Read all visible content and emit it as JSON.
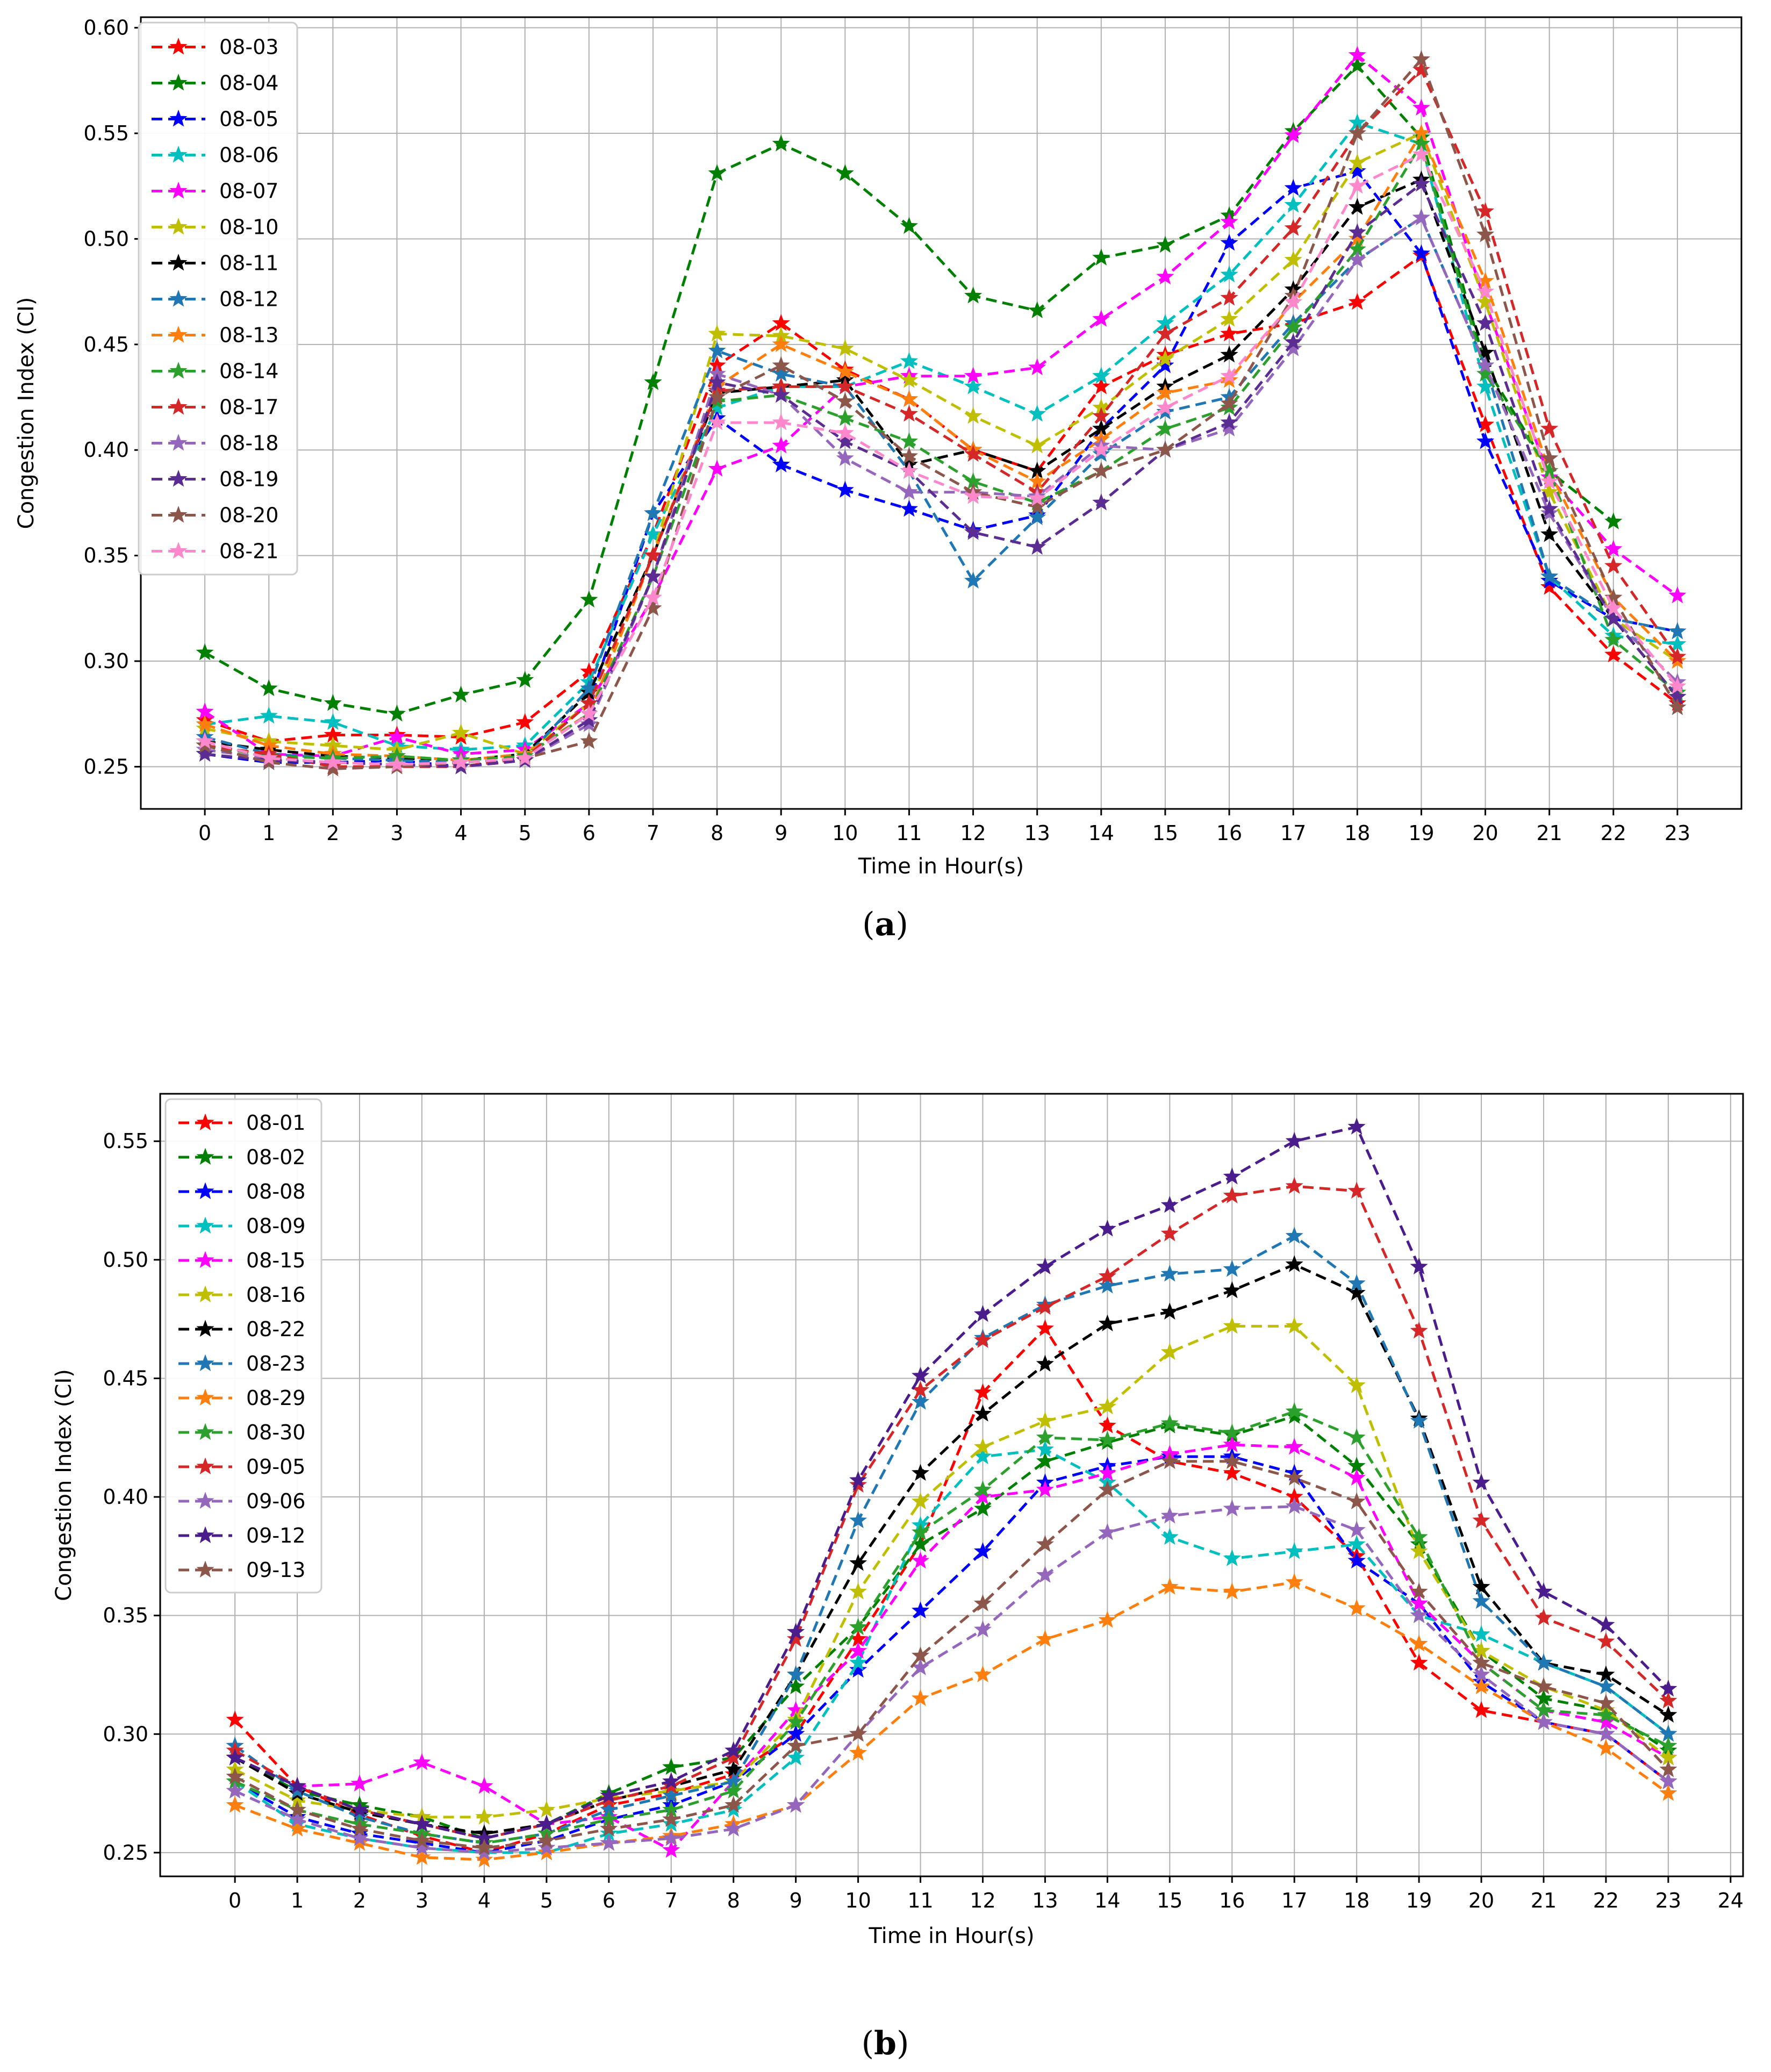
{
  "chart_data": [
    {
      "id": "a",
      "type": "line",
      "caption_letter": "a",
      "xlabel": "Time in Hour(s)",
      "ylabel": "Congestion Index (CI)",
      "xlim": [
        -1,
        24
      ],
      "ylim": [
        0.23,
        0.605
      ],
      "xticks": [
        0,
        1,
        2,
        3,
        4,
        5,
        6,
        7,
        8,
        9,
        10,
        11,
        12,
        13,
        14,
        15,
        16,
        17,
        18,
        19,
        20,
        21,
        22,
        23
      ],
      "yticks": [
        "0.25",
        "0.30",
        "0.35",
        "0.40",
        "0.45",
        "0.50",
        "0.55",
        "0.60"
      ],
      "grid": true,
      "legend_position": "top-left",
      "series": [
        {
          "name": "08-03",
          "color": "#ff0000",
          "values": [
            0.272,
            0.262,
            0.265,
            0.265,
            0.264,
            0.271,
            0.295,
            0.36,
            0.44,
            0.46,
            0.438,
            0.424,
            0.4,
            0.39,
            0.43,
            0.445,
            0.455,
            0.46,
            0.47,
            0.492,
            0.412,
            0.335,
            0.303,
            0.28
          ]
        },
        {
          "name": "08-04",
          "color": "#008000",
          "values": [
            0.304,
            0.287,
            0.28,
            0.275,
            0.284,
            0.291,
            0.329,
            0.432,
            0.531,
            0.545,
            0.531,
            0.506,
            0.473,
            0.466,
            0.491,
            0.497,
            0.511,
            0.551,
            0.582,
            0.548,
            0.44,
            0.39,
            0.366,
            null
          ]
        },
        {
          "name": "08-05",
          "color": "#0000ff",
          "values": [
            0.256,
            0.252,
            0.252,
            0.253,
            0.25,
            0.254,
            0.28,
            0.37,
            0.415,
            0.393,
            0.381,
            0.372,
            0.362,
            0.369,
            0.41,
            0.44,
            0.498,
            0.524,
            0.532,
            0.493,
            0.404,
            0.338,
            0.32,
            0.314
          ]
        },
        {
          "name": "08-06",
          "color": "#00bfbf",
          "values": [
            0.27,
            0.274,
            0.271,
            0.26,
            0.258,
            0.26,
            0.29,
            0.36,
            0.42,
            0.43,
            0.43,
            0.442,
            0.43,
            0.417,
            0.435,
            0.46,
            0.483,
            0.516,
            0.555,
            0.545,
            0.43,
            0.34,
            0.312,
            0.308
          ]
        },
        {
          "name": "08-07",
          "color": "#ff00ff",
          "values": [
            0.276,
            0.256,
            0.255,
            0.264,
            0.256,
            0.258,
            0.28,
            0.33,
            0.391,
            0.402,
            0.43,
            0.435,
            0.435,
            0.439,
            0.462,
            0.482,
            0.508,
            0.549,
            0.587,
            0.562,
            0.47,
            0.387,
            0.353,
            0.331
          ]
        },
        {
          "name": "08-10",
          "color": "#bfbf00",
          "values": [
            0.268,
            0.262,
            0.26,
            0.258,
            0.266,
            0.256,
            0.28,
            0.35,
            0.455,
            0.454,
            0.448,
            0.433,
            0.416,
            0.402,
            0.42,
            0.443,
            0.462,
            0.49,
            0.536,
            0.55,
            0.47,
            0.38,
            0.32,
            0.3
          ]
        },
        {
          "name": "08-11",
          "color": "#000000",
          "values": [
            0.262,
            0.258,
            0.255,
            0.254,
            0.253,
            0.256,
            0.285,
            0.35,
            0.427,
            0.43,
            0.433,
            0.393,
            0.4,
            0.39,
            0.41,
            0.43,
            0.445,
            0.476,
            0.515,
            0.528,
            0.446,
            0.36,
            0.32,
            0.283
          ]
        },
        {
          "name": "08-12",
          "color": "#1f77b4",
          "values": [
            0.264,
            0.256,
            0.254,
            0.253,
            0.252,
            0.254,
            0.287,
            0.37,
            0.447,
            0.436,
            0.43,
            0.39,
            0.338,
            0.368,
            0.398,
            0.418,
            0.425,
            0.46,
            0.49,
            0.51,
            0.44,
            0.34,
            0.32,
            0.314
          ]
        },
        {
          "name": "08-13",
          "color": "#ff7f0e",
          "values": [
            0.27,
            0.26,
            0.256,
            0.255,
            0.253,
            0.256,
            0.275,
            0.35,
            0.43,
            0.45,
            0.437,
            0.424,
            0.4,
            0.385,
            0.405,
            0.427,
            0.433,
            0.47,
            0.5,
            0.55,
            0.48,
            0.39,
            0.33,
            0.3
          ]
        },
        {
          "name": "08-14",
          "color": "#2ca02c",
          "values": [
            0.26,
            0.255,
            0.254,
            0.255,
            0.253,
            0.255,
            0.275,
            0.34,
            0.423,
            0.426,
            0.415,
            0.404,
            0.385,
            0.375,
            0.39,
            0.41,
            0.42,
            0.458,
            0.495,
            0.545,
            0.436,
            0.39,
            0.31,
            0.285
          ]
        },
        {
          "name": "08-17",
          "color": "#d62728",
          "values": [
            0.26,
            0.256,
            0.25,
            0.25,
            0.25,
            0.254,
            0.28,
            0.35,
            0.428,
            0.43,
            0.43,
            0.417,
            0.398,
            0.38,
            0.416,
            0.455,
            0.472,
            0.505,
            0.55,
            0.58,
            0.513,
            0.41,
            0.345,
            0.302
          ]
        },
        {
          "name": "08-18",
          "color": "#9467bd",
          "values": [
            0.258,
            0.254,
            0.252,
            0.251,
            0.25,
            0.253,
            0.27,
            0.34,
            0.436,
            0.426,
            0.396,
            0.38,
            0.38,
            0.378,
            0.402,
            0.4,
            0.41,
            0.448,
            0.49,
            0.51,
            0.44,
            0.37,
            0.32,
            0.29
          ]
        },
        {
          "name": "08-19",
          "color": "#5b2c91",
          "values": [
            0.256,
            0.253,
            0.252,
            0.251,
            0.25,
            0.253,
            0.272,
            0.34,
            0.432,
            0.426,
            0.404,
            0.39,
            0.361,
            0.354,
            0.375,
            0.4,
            0.413,
            0.451,
            0.503,
            0.526,
            0.46,
            0.372,
            0.32,
            0.283
          ]
        },
        {
          "name": "08-20",
          "color": "#8c564b",
          "values": [
            0.26,
            0.252,
            0.249,
            0.25,
            0.252,
            0.254,
            0.262,
            0.325,
            0.425,
            0.44,
            0.423,
            0.397,
            0.38,
            0.373,
            0.39,
            0.4,
            0.422,
            0.473,
            0.55,
            0.585,
            0.502,
            0.396,
            0.33,
            0.278
          ]
        },
        {
          "name": "08-21",
          "color": "#ff88cc",
          "values": [
            0.262,
            0.254,
            0.252,
            0.251,
            0.252,
            0.254,
            0.275,
            0.33,
            0.413,
            0.413,
            0.408,
            0.39,
            0.378,
            0.377,
            0.4,
            0.42,
            0.435,
            0.47,
            0.525,
            0.54,
            0.475,
            0.385,
            0.325,
            0.288
          ]
        }
      ]
    },
    {
      "id": "b",
      "type": "line",
      "caption_letter": "b",
      "xlabel": "Time in Hour(s)",
      "ylabel": "Congestion Index (CI)",
      "xlim": [
        -1.2,
        24.2
      ],
      "ylim": [
        0.24,
        0.57
      ],
      "xticks": [
        0,
        1,
        2,
        3,
        4,
        5,
        6,
        7,
        8,
        9,
        10,
        11,
        12,
        13,
        14,
        15,
        16,
        17,
        18,
        19,
        20,
        21,
        22,
        23,
        24
      ],
      "yticks": [
        "0.25",
        "0.30",
        "0.35",
        "0.40",
        "0.45",
        "0.50",
        "0.55"
      ],
      "grid": true,
      "legend_position": "top-left",
      "series": [
        {
          "name": "08-01",
          "color": "#ff0000",
          "values": [
            0.306,
            0.278,
            0.266,
            0.257,
            0.25,
            0.258,
            0.27,
            0.275,
            0.283,
            0.3,
            0.34,
            0.38,
            0.444,
            0.471,
            0.43,
            0.415,
            0.41,
            0.4,
            0.375,
            0.33,
            0.31,
            0.305,
            0.3,
            0.28
          ]
        },
        {
          "name": "08-02",
          "color": "#008000",
          "values": [
            0.29,
            0.276,
            0.27,
            0.265,
            0.256,
            0.262,
            0.275,
            0.286,
            0.29,
            0.32,
            0.345,
            0.38,
            0.395,
            0.415,
            0.423,
            0.43,
            0.426,
            0.434,
            0.413,
            0.38,
            0.335,
            0.315,
            0.31,
            0.293
          ]
        },
        {
          "name": "08-08",
          "color": "#0000ff",
          "values": [
            0.28,
            0.265,
            0.258,
            0.254,
            0.25,
            0.255,
            0.264,
            0.27,
            0.28,
            0.3,
            0.327,
            0.352,
            0.377,
            0.406,
            0.413,
            0.417,
            0.417,
            0.41,
            0.373,
            0.355,
            0.322,
            0.305,
            0.3,
            0.28
          ]
        },
        {
          "name": "08-09",
          "color": "#00bfbf",
          "values": [
            0.28,
            0.262,
            0.256,
            0.252,
            0.25,
            0.25,
            0.258,
            0.262,
            0.268,
            0.29,
            0.33,
            0.388,
            0.417,
            0.42,
            0.406,
            0.383,
            0.374,
            0.377,
            0.38,
            0.35,
            0.342,
            0.33,
            0.32,
            0.3
          ]
        },
        {
          "name": "08-15",
          "color": "#ff00ff",
          "values": [
            0.29,
            0.278,
            0.279,
            0.288,
            0.278,
            0.262,
            0.265,
            0.251,
            0.28,
            0.31,
            0.335,
            0.373,
            0.4,
            0.403,
            0.41,
            0.418,
            0.422,
            0.421,
            0.408,
            0.355,
            0.33,
            0.31,
            0.305,
            0.29
          ]
        },
        {
          "name": "08-16",
          "color": "#bfbf00",
          "values": [
            0.285,
            0.272,
            0.268,
            0.265,
            0.265,
            0.268,
            0.273,
            0.276,
            0.28,
            0.306,
            0.36,
            0.398,
            0.421,
            0.432,
            0.438,
            0.461,
            0.472,
            0.472,
            0.447,
            0.377,
            0.335,
            0.32,
            0.31,
            0.29
          ]
        },
        {
          "name": "08-22",
          "color": "#000000",
          "values": [
            0.29,
            0.275,
            0.267,
            0.262,
            0.258,
            0.262,
            0.272,
            0.278,
            0.285,
            0.325,
            0.372,
            0.41,
            0.435,
            0.456,
            0.473,
            0.478,
            0.487,
            0.498,
            0.486,
            0.433,
            0.362,
            0.33,
            0.325,
            0.308
          ]
        },
        {
          "name": "08-23",
          "color": "#1f77b4",
          "values": [
            0.295,
            0.276,
            0.265,
            0.258,
            0.254,
            0.258,
            0.268,
            0.274,
            0.28,
            0.325,
            0.39,
            0.44,
            0.467,
            0.481,
            0.489,
            0.494,
            0.496,
            0.51,
            0.49,
            0.432,
            0.356,
            0.33,
            0.32,
            0.3
          ]
        },
        {
          "name": "08-29",
          "color": "#ff7f0e",
          "values": [
            0.27,
            0.26,
            0.254,
            0.248,
            0.247,
            0.25,
            0.254,
            0.257,
            0.262,
            0.27,
            0.292,
            0.315,
            0.325,
            0.34,
            0.348,
            0.362,
            0.36,
            0.364,
            0.353,
            0.338,
            0.32,
            0.305,
            0.294,
            0.275
          ]
        },
        {
          "name": "08-30",
          "color": "#2ca02c",
          "values": [
            0.28,
            0.268,
            0.262,
            0.258,
            0.254,
            0.258,
            0.264,
            0.268,
            0.276,
            0.305,
            0.345,
            0.385,
            0.403,
            0.425,
            0.424,
            0.431,
            0.427,
            0.436,
            0.425,
            0.383,
            0.33,
            0.31,
            0.308,
            0.295
          ]
        },
        {
          "name": "09-05",
          "color": "#d62728",
          "values": [
            0.293,
            0.278,
            0.268,
            0.262,
            0.256,
            0.262,
            0.272,
            0.278,
            0.29,
            0.34,
            0.405,
            0.445,
            0.466,
            0.48,
            0.493,
            0.511,
            0.527,
            0.531,
            0.529,
            0.47,
            0.39,
            0.349,
            0.339,
            0.314
          ]
        },
        {
          "name": "09-06",
          "color": "#9467bd",
          "values": [
            0.276,
            0.264,
            0.256,
            0.252,
            0.25,
            0.252,
            0.254,
            0.256,
            0.26,
            0.27,
            0.3,
            0.328,
            0.344,
            0.367,
            0.385,
            0.392,
            0.395,
            0.396,
            0.386,
            0.35,
            0.325,
            0.305,
            0.3,
            0.28
          ]
        },
        {
          "name": "09-12",
          "color": "#4b1c8c",
          "values": [
            0.29,
            0.278,
            0.268,
            0.262,
            0.256,
            0.262,
            0.274,
            0.28,
            0.293,
            0.343,
            0.407,
            0.451,
            0.477,
            0.497,
            0.513,
            0.523,
            0.535,
            0.55,
            0.556,
            0.497,
            0.406,
            0.36,
            0.346,
            0.319
          ]
        },
        {
          "name": "09-13",
          "color": "#8c564b",
          "values": [
            0.282,
            0.268,
            0.26,
            0.255,
            0.252,
            0.255,
            0.26,
            0.264,
            0.27,
            0.295,
            0.3,
            0.333,
            0.355,
            0.38,
            0.403,
            0.415,
            0.415,
            0.408,
            0.398,
            0.36,
            0.33,
            0.32,
            0.313,
            0.285
          ]
        }
      ]
    }
  ]
}
